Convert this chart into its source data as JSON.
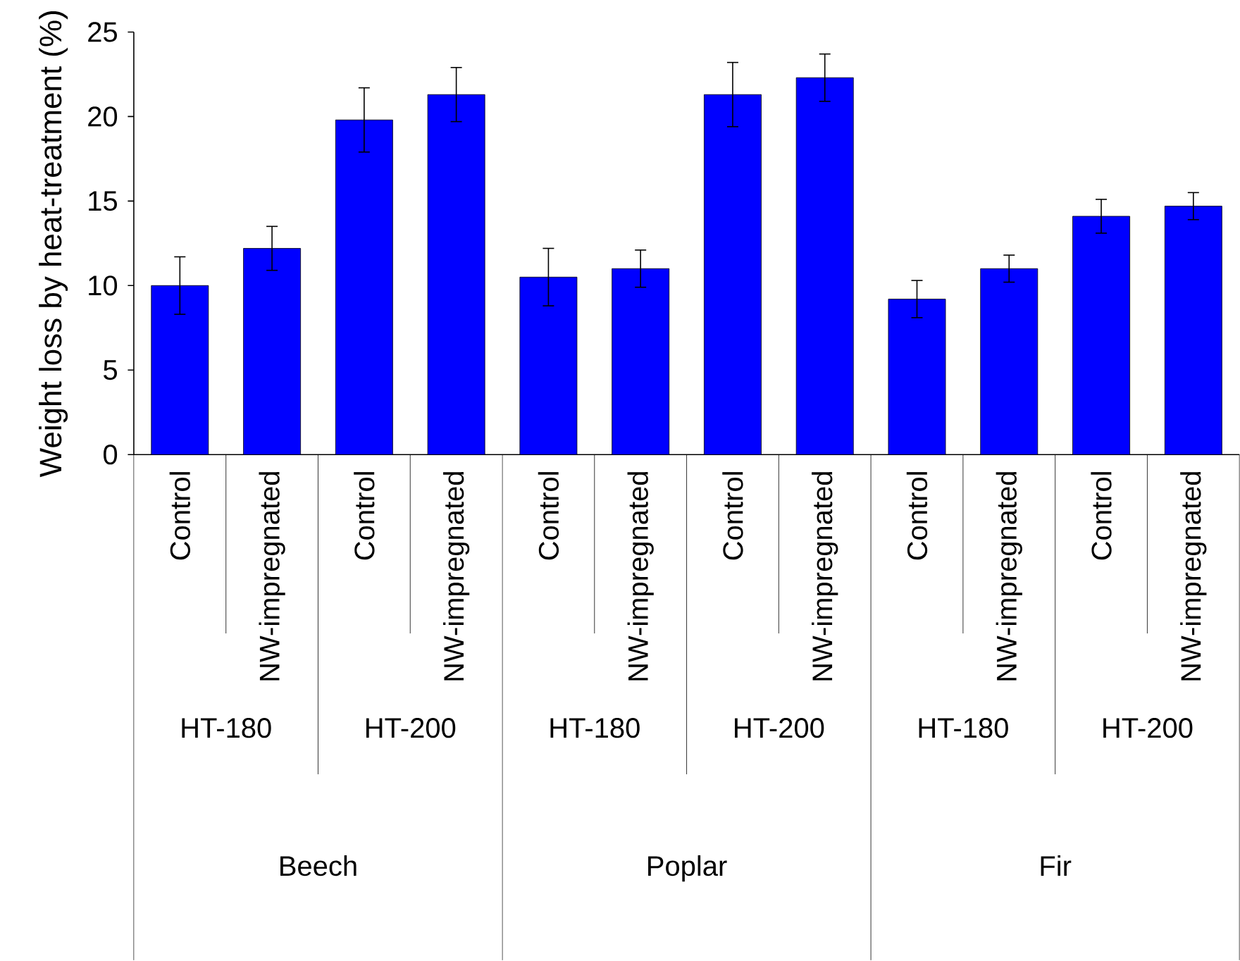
{
  "chart_data": {
    "type": "bar",
    "ylabel": "Weight loss by heat-treatment  (%)",
    "categories": [
      "Control",
      "NW-impregnated",
      "Control",
      "NW-impregnated",
      "Control",
      "NW-impregnated",
      "Control",
      "NW-impregnated",
      "Control",
      "NW-impregnated",
      "Control",
      "NW-impregnated"
    ],
    "values": [
      10.0,
      12.2,
      19.8,
      21.3,
      10.5,
      11.0,
      21.3,
      22.3,
      9.2,
      11.0,
      14.1,
      14.7
    ],
    "errors": [
      1.7,
      1.3,
      1.9,
      1.6,
      1.7,
      1.1,
      1.9,
      1.4,
      1.1,
      0.8,
      1.0,
      0.8
    ],
    "color": "#0000ff",
    "ylim": [
      0,
      25
    ],
    "yticks": [
      0,
      5,
      10,
      15,
      20,
      25
    ],
    "annotations": [
      "HT-180",
      "HT-200",
      "HT-180",
      "HT-200",
      "HT-180",
      "HT-200",
      "Beech",
      "Poplar",
      "Fir"
    ]
  }
}
